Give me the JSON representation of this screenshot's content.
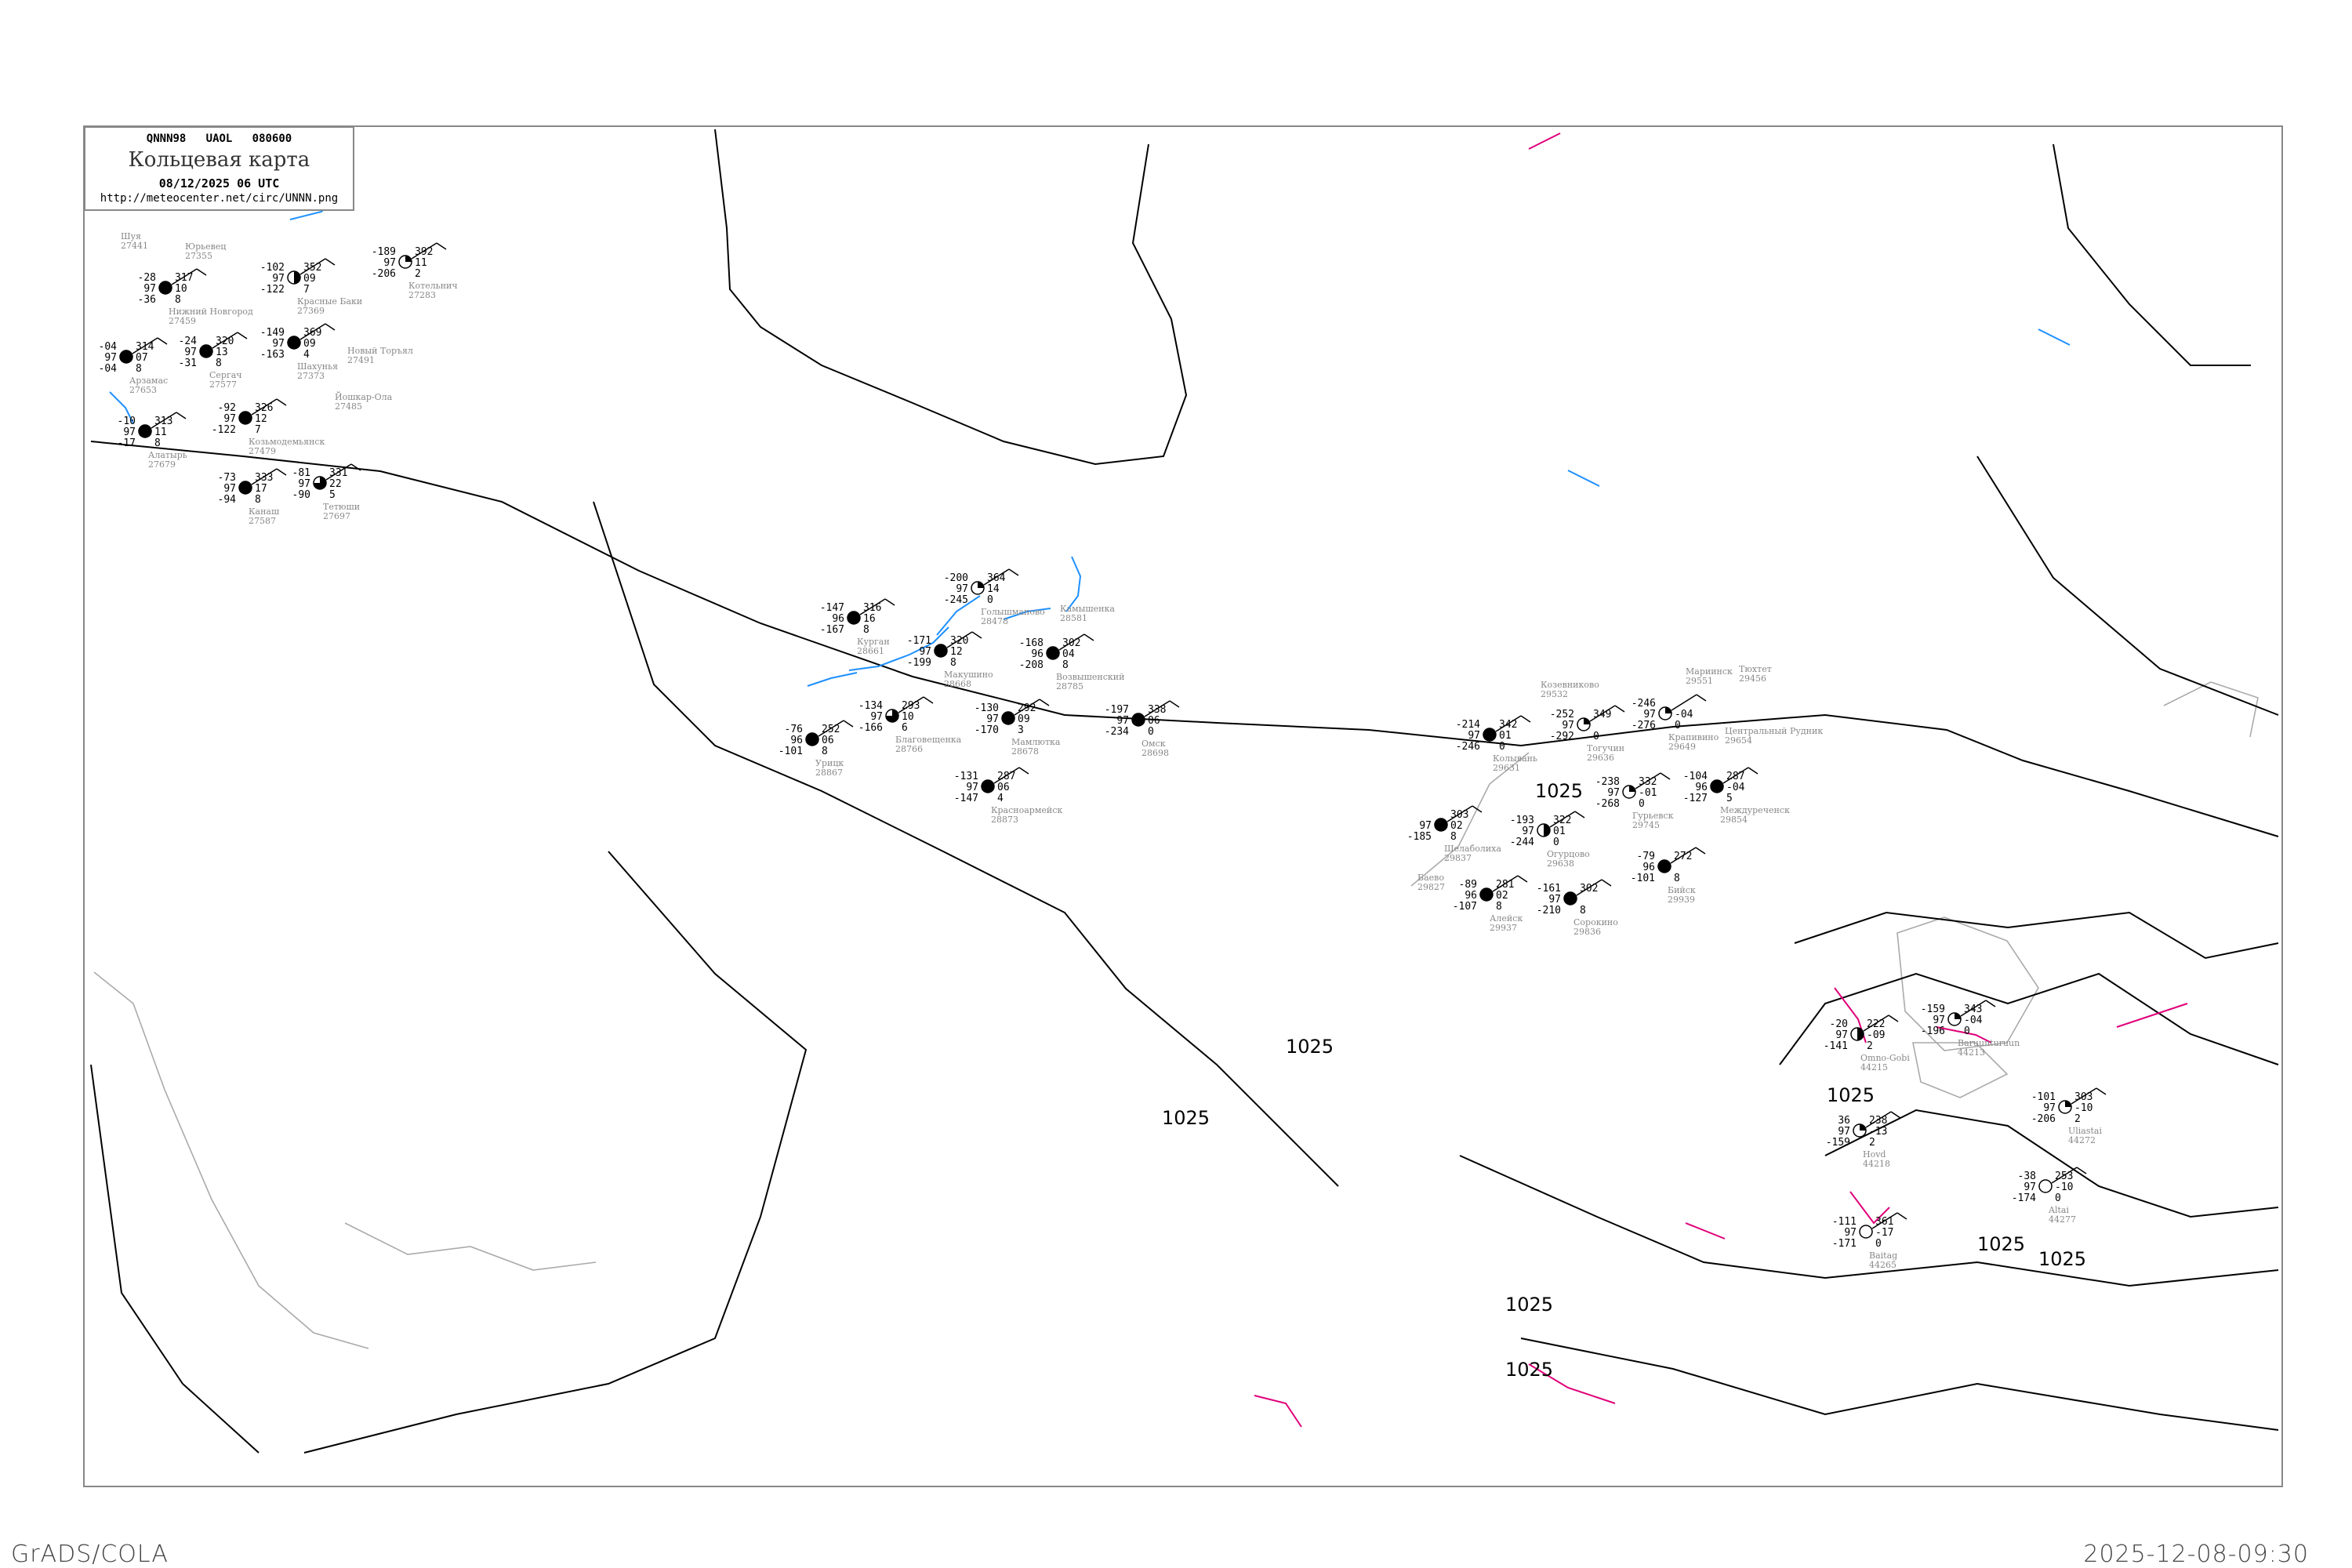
{
  "header": {
    "code_line": "QNNN98   UAOL   080600",
    "title": "Кольцевая карта",
    "datetime": "08/12/2025 06 UTC",
    "url": "http://meteocenter.net/circ/UNNN.png"
  },
  "footer": {
    "left": "GrADS/COLA",
    "right": "2025-12-08-09:30"
  },
  "colors": {
    "isobar": "#000000",
    "isotherm_zero": "#1e90ff",
    "contour_magenta": "#e0007a",
    "coastline": "#aaaaaa",
    "station_name": "#888888",
    "precip_marker": "#3399ff"
  },
  "isobar_labels": [
    "1025",
    "1025",
    "1025",
    "1025",
    "1025",
    "1025",
    "1025",
    "1025"
  ],
  "stations": [
    {
      "name": "Нижний Новгород",
      "id": "27459",
      "t": "-28",
      "vv": "97",
      "td": "-36",
      "p": "317",
      "tend": "10",
      "low": "8",
      "cover": "full"
    },
    {
      "name": "Красные Баки",
      "id": "27369",
      "t": "-102",
      "vv": "97",
      "td": "-122",
      "p": "352",
      "tend": "09",
      "low": "7",
      "cover": "half"
    },
    {
      "name": "Шахунья",
      "id": "27373",
      "t": "-149",
      "vv": "97",
      "td": "-163",
      "p": "369",
      "tend": "09",
      "low": "4",
      "cover": "full"
    },
    {
      "name": "Котельнич",
      "id": "27283",
      "t": "-189",
      "vv": "97",
      "td": "-206",
      "p": "392",
      "tend": "11",
      "low": "2",
      "cover": "quarter"
    },
    {
      "name": "Арзамас",
      "id": "27653",
      "t": "-04",
      "vv": "97",
      "td": "-04",
      "p": "314",
      "tend": "07",
      "low": "8",
      "cover": "full"
    },
    {
      "name": "Сергач",
      "id": "27577",
      "t": "-24",
      "vv": "97",
      "td": "-31",
      "p": "320",
      "tend": "13",
      "low": "8",
      "cover": "full"
    },
    {
      "name": "Козьмодемьянск",
      "id": "27479",
      "t": "-92",
      "vv": "97",
      "td": "-122",
      "p": "326",
      "tend": "12",
      "low": "7",
      "cover": "full"
    },
    {
      "name": "Канаш",
      "id": "27587",
      "t": "-73",
      "vv": "97",
      "td": "-94",
      "p": "333",
      "tend": "17",
      "low": "8",
      "cover": "full"
    },
    {
      "name": "Алатырь",
      "id": "27679",
      "t": "-10",
      "vv": "97",
      "td": "-17",
      "p": "313",
      "tend": "11",
      "low": "8",
      "cover": "full"
    },
    {
      "name": "Тетюши",
      "id": "27697",
      "t": "-81",
      "vv": "97",
      "td": "-90",
      "p": "331",
      "tend": "22",
      "low": "5",
      "cover": "threequarter"
    },
    {
      "name": "Голышманово",
      "id": "28478",
      "t": "-200",
      "vv": "97",
      "td": "-245",
      "p": "364",
      "tend": "14",
      "low": "0",
      "cover": "quarter"
    },
    {
      "name": "Курган",
      "id": "28661",
      "t": "-147",
      "vv": "96",
      "td": "-167",
      "p": "316",
      "tend": "16",
      "low": "8",
      "cover": "full"
    },
    {
      "name": "Макушино",
      "id": "28668",
      "t": "-171",
      "vv": "97",
      "td": "-199",
      "p": "320",
      "tend": "12",
      "low": "8",
      "cover": "full"
    },
    {
      "name": "Благовещенка",
      "id": "28766",
      "t": "-134",
      "vv": "97",
      "td": "-166",
      "p": "293",
      "tend": "10",
      "low": "6",
      "cover": "threequarter"
    },
    {
      "name": "Мамлютка",
      "id": "28678",
      "t": "-130",
      "vv": "97",
      "td": "-170",
      "p": "292",
      "tend": "09",
      "low": "3",
      "cover": "full"
    },
    {
      "name": "Красноармейск",
      "id": "28873",
      "t": "-131",
      "vv": "97",
      "td": "-147",
      "p": "287",
      "tend": "06",
      "low": "4",
      "cover": "full"
    },
    {
      "name": "Возвышенский",
      "id": "28785",
      "t": "-168",
      "vv": "96",
      "td": "-208",
      "p": "302",
      "tend": "04",
      "low": "8",
      "cover": "full"
    },
    {
      "name": "Омск",
      "id": "28698",
      "t": "-197",
      "vv": "97",
      "td": "-234",
      "p": "338",
      "tend": "06",
      "low": "0",
      "cover": "full"
    },
    {
      "name": "Урицк",
      "id": "28867",
      "t": "-76",
      "vv": "96",
      "td": "-101",
      "p": "252",
      "tend": "06",
      "low": "8",
      "cover": "full"
    },
    {
      "name": "Колывань",
      "id": "29631",
      "t": "-214",
      "vv": "97",
      "td": "-246",
      "p": "342",
      "tend": "01",
      "low": "0",
      "cover": "full"
    },
    {
      "name": "Тогучин",
      "id": "29636",
      "t": "-252",
      "vv": "97",
      "td": "-292",
      "p": "349",
      "tend": "",
      "low": "0",
      "cover": "quarter"
    },
    {
      "name": "Огурцово",
      "id": "29638",
      "t": "-193",
      "vv": "97",
      "td": "-244",
      "p": "322",
      "tend": "01",
      "low": "0",
      "cover": "half"
    },
    {
      "name": "Гурьевск",
      "id": "29745",
      "t": "-238",
      "vv": "97",
      "td": "-268",
      "p": "332",
      "tend": "-01",
      "low": "0",
      "cover": "quarter"
    },
    {
      "name": "Крапивино",
      "id": "29649",
      "t": "-246",
      "vv": "97",
      "td": "-276",
      "p": "",
      "tend": "-04",
      "low": "0",
      "cover": "quarter"
    },
    {
      "name": "Сорокино",
      "id": "29836",
      "t": "-161",
      "vv": "97",
      "td": "-210",
      "p": "302",
      "tend": "",
      "low": "8",
      "cover": "full"
    },
    {
      "name": "Шелаболиха",
      "id": "29837",
      "t": "",
      "vv": "97",
      "td": "-185",
      "p": "303",
      "tend": "02",
      "low": "8",
      "cover": "full"
    },
    {
      "name": "Алейск",
      "id": "29937",
      "t": "-89",
      "vv": "96",
      "td": "-107",
      "p": "281",
      "tend": "02",
      "low": "8",
      "cover": "full"
    },
    {
      "name": "Бийск",
      "id": "29939",
      "t": "-79",
      "vv": "96",
      "td": "-101",
      "p": "272",
      "tend": "",
      "low": "8",
      "cover": "full"
    },
    {
      "name": "Междуреченск",
      "id": "29854",
      "t": "-104",
      "vv": "96",
      "td": "-127",
      "p": "287",
      "tend": "-04",
      "low": "5",
      "cover": "full"
    },
    {
      "name": "Baruunturuun",
      "id": "44213",
      "t": "-159",
      "vv": "97",
      "td": "-196",
      "p": "343",
      "tend": "-04",
      "low": "0",
      "cover": "quarter"
    },
    {
      "name": "Omno-Gobi",
      "id": "44215",
      "t": "-20",
      "vv": "97",
      "td": "-141",
      "p": "222",
      "tend": "-09",
      "low": "2",
      "cover": "half"
    },
    {
      "name": "Hovd",
      "id": "44218",
      "t": "36",
      "vv": "97",
      "td": "-159",
      "p": "238",
      "tend": "-13",
      "low": "2",
      "cover": "quarter"
    },
    {
      "name": "Uliastai",
      "id": "44272",
      "t": "-101",
      "vv": "97",
      "td": "-206",
      "p": "303",
      "tend": "-10",
      "low": "2",
      "cover": "quarter"
    },
    {
      "name": "Altai",
      "id": "44277",
      "t": "-38",
      "vv": "97",
      "td": "-174",
      "p": "253",
      "tend": "-10",
      "low": "0",
      "cover": "empty"
    },
    {
      "name": "Baitag",
      "id": "44265",
      "t": "-111",
      "vv": "97",
      "td": "-171",
      "p": "361",
      "tend": "-17",
      "low": "0",
      "cover": "empty"
    }
  ],
  "place_labels": [
    {
      "name": "Камышенка",
      "id": "28581"
    },
    {
      "name": "Мариинск",
      "id": "29551"
    },
    {
      "name": "Центральный Рудник",
      "id": "29654"
    },
    {
      "name": "Козевниково",
      "id": "29532"
    },
    {
      "name": "Тюхтет",
      "id": "29456"
    },
    {
      "name": "Баево",
      "id": "29827"
    },
    {
      "name": "Шуя",
      "id": "27441"
    },
    {
      "name": "Юрьевец",
      "id": "27355"
    },
    {
      "name": "Новый Торъял",
      "id": "27491"
    },
    {
      "name": "Йошкар-Ола",
      "id": "27485"
    }
  ]
}
